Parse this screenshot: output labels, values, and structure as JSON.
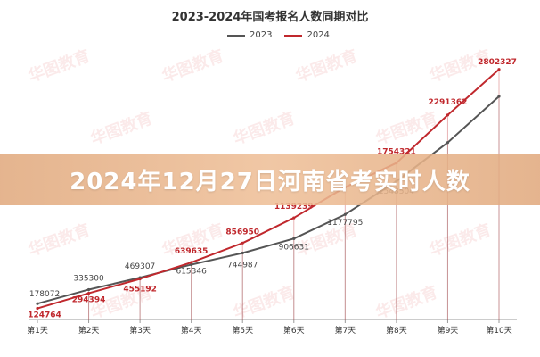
{
  "chart_data": {
    "type": "line",
    "title": "2023-2024年国考报名人数同期对比",
    "categories": [
      "第1天",
      "第2天",
      "第3天",
      "第4天",
      "第5天",
      "第6天",
      "第7天",
      "第8天",
      "第9天",
      "第10天"
    ],
    "series": [
      {
        "name": "2023",
        "color": "#555555",
        "values": [
          178072,
          335300,
          469307,
          615346,
          744987,
          906631,
          1177795,
          1548504,
          1983000,
          2500000
        ],
        "labels": [
          "178072",
          "335300",
          "469307",
          "615346",
          "744987",
          "906631",
          "1177795",
          "1548504",
          "",
          ""
        ]
      },
      {
        "name": "2024",
        "color": "#c0282d",
        "values": [
          124764,
          294394,
          455192,
          639635,
          856950,
          1139239,
          1482000,
          1754321,
          2291362,
          2802327
        ],
        "labels": [
          "124764",
          "294394",
          "455192",
          "639635",
          "856950",
          "1139239",
          "",
          "1754321",
          "2291362",
          "2802327"
        ]
      }
    ],
    "ylim": [
      0,
      3000000
    ],
    "grid": false,
    "legend": "top-center"
  },
  "banner": {
    "text": "2024年12月27日河南省考实时人数"
  },
  "watermark": {
    "text": "华图教育"
  }
}
